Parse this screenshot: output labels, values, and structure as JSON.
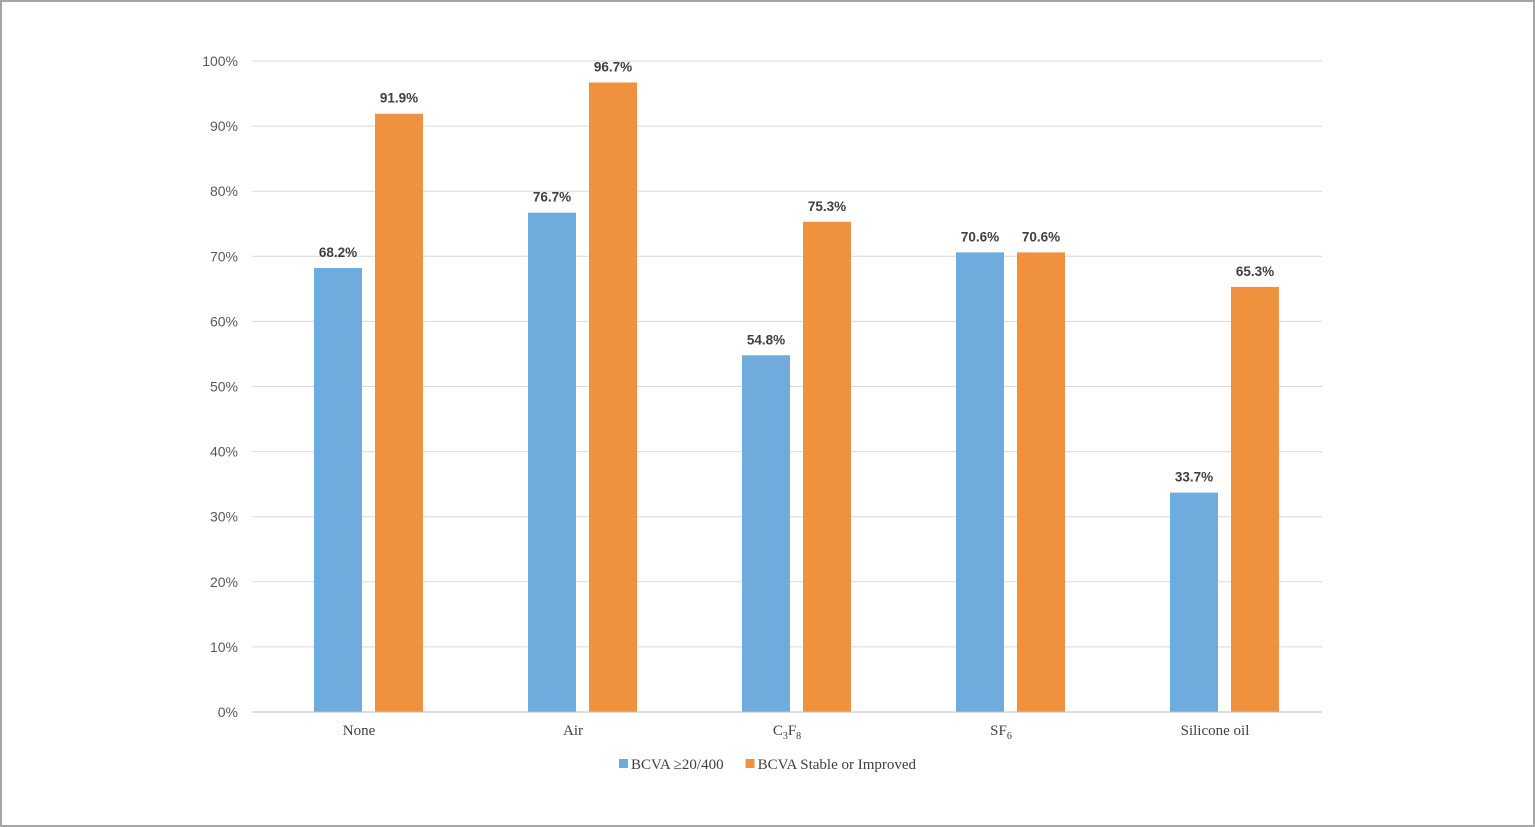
{
  "chart_data": {
    "type": "bar",
    "title": "",
    "xlabel": "",
    "ylabel": "",
    "categories": [
      {
        "base": "None",
        "parts": []
      },
      {
        "base": "Air",
        "parts": []
      },
      {
        "base": "",
        "parts": [
          [
            "C",
            ""
          ],
          [
            "3",
            "sub"
          ],
          [
            "F",
            ""
          ],
          [
            "8",
            "sub"
          ]
        ]
      },
      {
        "base": "",
        "parts": [
          [
            "SF",
            ""
          ],
          [
            "6",
            "sub"
          ]
        ]
      },
      {
        "base": "Silicone oil",
        "parts": []
      }
    ],
    "series": [
      {
        "name": "BCVA ≥20/400",
        "color": "#6fabdd",
        "values": [
          68.2,
          76.7,
          54.8,
          70.6,
          33.7
        ],
        "labels": [
          "68.2%",
          "76.7%",
          "54.8%",
          "70.6%",
          "33.7%"
        ]
      },
      {
        "name": "BCVA Stable or Improved",
        "color": "#f0913e",
        "values": [
          91.9,
          96.7,
          75.3,
          70.6,
          65.3
        ],
        "labels": [
          "91.9%",
          "96.7%",
          "75.3%",
          "70.6%",
          "65.3%"
        ]
      }
    ],
    "ylim": [
      0,
      100
    ],
    "yticks": [
      0,
      10,
      20,
      30,
      40,
      50,
      60,
      70,
      80,
      90,
      100
    ],
    "ytick_labels": [
      "0%",
      "10%",
      "20%",
      "30%",
      "40%",
      "50%",
      "60%",
      "70%",
      "80%",
      "90%",
      "100%"
    ],
    "grid": true,
    "gridline_color": "#d9d9d9",
    "axis_color": "#bfbfbf",
    "legend_position": "bottom"
  }
}
